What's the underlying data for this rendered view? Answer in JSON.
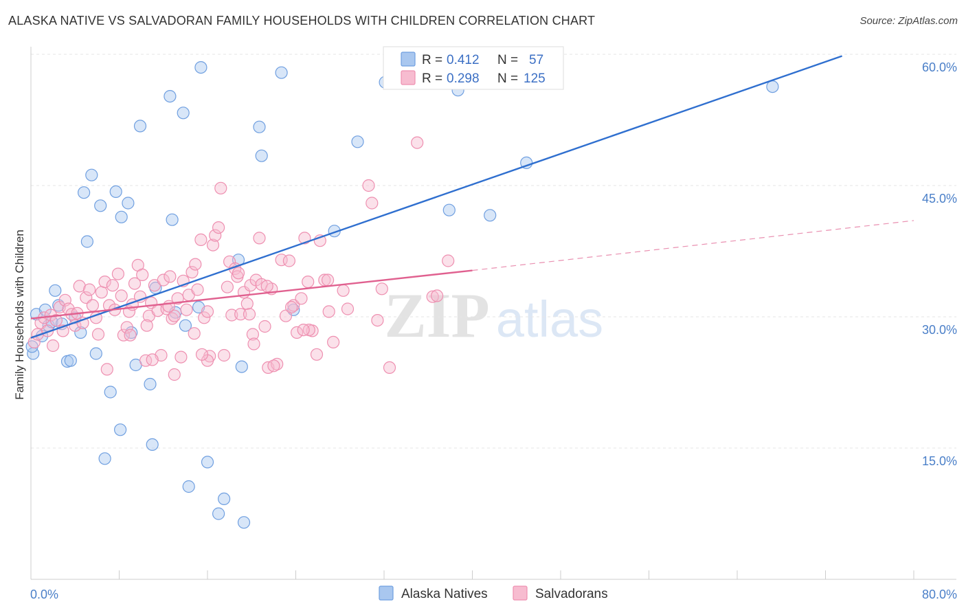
{
  "title": "ALASKA NATIVE VS SALVADORAN FAMILY HOUSEHOLDS WITH CHILDREN CORRELATION CHART",
  "source": "Source: ZipAtlas.com",
  "watermark": {
    "zip": "ZIP",
    "atlas": "atlas"
  },
  "legend": {
    "rows": [
      {
        "r_label": "R =",
        "r_value": "0.412",
        "n_label": "N =",
        "n_value": "57",
        "color": "#a9c7ef",
        "stroke": "#6f9fe0"
      },
      {
        "r_label": "R =",
        "r_value": "0.298",
        "n_label": "N =",
        "n_value": "125",
        "color": "#f7bcd0",
        "stroke": "#ee8fb0"
      }
    ]
  },
  "bottom_legend": [
    {
      "label": "Alaska Natives",
      "color": "#a9c7ef",
      "stroke": "#6f9fe0"
    },
    {
      "label": "Salvadorans",
      "color": "#f7bcd0",
      "stroke": "#ee8fb0"
    }
  ],
  "chart_data": {
    "type": "scatter",
    "title": "ALASKA NATIVE VS SALVADORAN FAMILY HOUSEHOLDS WITH CHILDREN CORRELATION CHART",
    "xlabel": "",
    "ylabel": "Family Households with Children",
    "xlim": [
      0,
      80
    ],
    "ylim": [
      0,
      60
    ],
    "x_tick_labels": [
      "0.0%",
      "80.0%"
    ],
    "y_ticks": [
      15,
      30,
      45,
      60
    ],
    "y_tick_labels": [
      "15.0%",
      "30.0%",
      "45.0%",
      "60.0%"
    ],
    "series": [
      {
        "name": "Alaska Natives",
        "color": "#a9c7ef",
        "stroke": "#6f9fe0",
        "line_color": "#2f6fcf",
        "trend": {
          "x": [
            0,
            73.5
          ],
          "y": [
            27.6,
            59.8
          ]
        },
        "points": [
          [
            0.2,
            25.8
          ],
          [
            0.5,
            30.3
          ],
          [
            1.0,
            27.8
          ],
          [
            1.3,
            30.8
          ],
          [
            1.6,
            29.0
          ],
          [
            1.9,
            29.4
          ],
          [
            2.2,
            33.0
          ],
          [
            2.5,
            31.3
          ],
          [
            2.8,
            29.2
          ],
          [
            3.3,
            24.9
          ],
          [
            3.6,
            25.0
          ],
          [
            4.0,
            29.9
          ],
          [
            4.5,
            28.2
          ],
          [
            4.8,
            44.2
          ],
          [
            5.1,
            38.6
          ],
          [
            5.5,
            46.2
          ],
          [
            5.9,
            25.8
          ],
          [
            6.3,
            42.7
          ],
          [
            6.7,
            13.8
          ],
          [
            7.2,
            21.4
          ],
          [
            7.7,
            44.3
          ],
          [
            8.1,
            17.1
          ],
          [
            8.2,
            41.4
          ],
          [
            8.8,
            43.0
          ],
          [
            9.1,
            28.2
          ],
          [
            9.5,
            24.5
          ],
          [
            9.9,
            51.8
          ],
          [
            10.8,
            22.3
          ],
          [
            11.0,
            15.4
          ],
          [
            11.3,
            33.3
          ],
          [
            12.6,
            55.2
          ],
          [
            12.8,
            41.1
          ],
          [
            13.1,
            30.5
          ],
          [
            13.8,
            53.3
          ],
          [
            14.3,
            10.6
          ],
          [
            14.0,
            29.0
          ],
          [
            15.2,
            31.1
          ],
          [
            15.4,
            58.5
          ],
          [
            16.0,
            13.4
          ],
          [
            17.0,
            7.5
          ],
          [
            17.5,
            9.2
          ],
          [
            18.8,
            36.5
          ],
          [
            19.1,
            24.3
          ],
          [
            19.3,
            6.5
          ],
          [
            20.7,
            51.7
          ],
          [
            20.9,
            48.4
          ],
          [
            22.7,
            57.9
          ],
          [
            23.8,
            30.8
          ],
          [
            27.5,
            39.8
          ],
          [
            29.6,
            50.0
          ],
          [
            32.1,
            56.8
          ],
          [
            37.9,
            42.2
          ],
          [
            38.7,
            55.9
          ],
          [
            41.6,
            41.6
          ],
          [
            44.9,
            47.6
          ],
          [
            67.2,
            56.3
          ],
          [
            0.1,
            26.6
          ]
        ]
      },
      {
        "name": "Salvadorans",
        "color": "#f7bcd0",
        "stroke": "#ee8fb0",
        "line_color": "#e0608f",
        "trend": {
          "x": [
            0,
            40.0
          ],
          "y": [
            29.8,
            35.3
          ]
        },
        "trend_extension": {
          "x": [
            40.0,
            80.0
          ],
          "y": [
            35.3,
            41.0
          ]
        },
        "points": [
          [
            0.3,
            27.1
          ],
          [
            0.6,
            28.0
          ],
          [
            0.9,
            29.3
          ],
          [
            1.2,
            29.9
          ],
          [
            1.5,
            28.4
          ],
          [
            1.8,
            30.2
          ],
          [
            2.0,
            26.7
          ],
          [
            2.3,
            29.6
          ],
          [
            2.6,
            31.1
          ],
          [
            2.9,
            28.4
          ],
          [
            3.1,
            31.9
          ],
          [
            3.4,
            30.9
          ],
          [
            3.7,
            30.3
          ],
          [
            4.0,
            29.0
          ],
          [
            4.2,
            30.4
          ],
          [
            4.4,
            33.5
          ],
          [
            4.7,
            29.3
          ],
          [
            5.0,
            32.2
          ],
          [
            5.3,
            33.1
          ],
          [
            5.6,
            31.3
          ],
          [
            5.9,
            29.9
          ],
          [
            6.1,
            28.0
          ],
          [
            6.4,
            32.8
          ],
          [
            6.7,
            34.0
          ],
          [
            6.9,
            24.0
          ],
          [
            7.1,
            31.3
          ],
          [
            7.4,
            33.6
          ],
          [
            7.6,
            30.8
          ],
          [
            7.9,
            34.9
          ],
          [
            8.2,
            32.4
          ],
          [
            8.4,
            27.9
          ],
          [
            8.7,
            28.8
          ],
          [
            8.9,
            30.6
          ],
          [
            9.2,
            31.4
          ],
          [
            9.4,
            33.8
          ],
          [
            9.7,
            35.9
          ],
          [
            9.9,
            32.3
          ],
          [
            10.1,
            34.8
          ],
          [
            10.4,
            25.0
          ],
          [
            10.7,
            30.1
          ],
          [
            10.9,
            31.6
          ],
          [
            11.2,
            33.6
          ],
          [
            11.5,
            30.7
          ],
          [
            11.8,
            25.6
          ],
          [
            12.0,
            34.2
          ],
          [
            12.3,
            30.9
          ],
          [
            12.6,
            34.6
          ],
          [
            12.8,
            29.8
          ],
          [
            13.0,
            23.4
          ],
          [
            13.3,
            32.1
          ],
          [
            13.6,
            25.4
          ],
          [
            13.8,
            34.1
          ],
          [
            14.1,
            30.8
          ],
          [
            14.3,
            32.5
          ],
          [
            14.6,
            35.1
          ],
          [
            14.9,
            36.0
          ],
          [
            15.1,
            33.1
          ],
          [
            15.4,
            38.8
          ],
          [
            15.7,
            29.9
          ],
          [
            16.0,
            30.6
          ],
          [
            16.2,
            25.5
          ],
          [
            16.5,
            38.2
          ],
          [
            16.7,
            39.3
          ],
          [
            17.0,
            40.2
          ],
          [
            17.2,
            44.7
          ],
          [
            17.5,
            25.6
          ],
          [
            17.8,
            33.4
          ],
          [
            18.0,
            36.3
          ],
          [
            18.2,
            30.2
          ],
          [
            18.5,
            35.5
          ],
          [
            18.7,
            34.6
          ],
          [
            19.0,
            30.3
          ],
          [
            19.3,
            32.8
          ],
          [
            19.6,
            31.5
          ],
          [
            19.9,
            33.6
          ],
          [
            20.1,
            28.0
          ],
          [
            20.4,
            34.2
          ],
          [
            20.7,
            39.0
          ],
          [
            20.9,
            33.7
          ],
          [
            21.2,
            28.9
          ],
          [
            21.5,
            24.2
          ],
          [
            21.8,
            33.2
          ],
          [
            22.3,
            24.6
          ],
          [
            22.7,
            36.5
          ],
          [
            23.1,
            30.1
          ],
          [
            23.4,
            36.4
          ],
          [
            23.8,
            31.3
          ],
          [
            24.1,
            28.2
          ],
          [
            24.5,
            32.1
          ],
          [
            24.8,
            39.0
          ],
          [
            25.1,
            34.0
          ],
          [
            25.5,
            28.4
          ],
          [
            25.9,
            25.7
          ],
          [
            26.2,
            38.7
          ],
          [
            26.6,
            34.2
          ],
          [
            27.0,
            30.6
          ],
          [
            27.4,
            27.1
          ],
          [
            28.3,
            33.0
          ],
          [
            30.6,
            45.0
          ],
          [
            30.9,
            43.0
          ],
          [
            31.4,
            29.6
          ],
          [
            31.8,
            33.2
          ],
          [
            32.5,
            24.2
          ],
          [
            35.0,
            49.9
          ],
          [
            36.4,
            32.3
          ],
          [
            36.8,
            32.4
          ],
          [
            37.8,
            36.4
          ],
          [
            13.0,
            30.1
          ],
          [
            14.8,
            28.1
          ],
          [
            9.0,
            27.9
          ],
          [
            16.0,
            25.0
          ],
          [
            11.0,
            25.1
          ],
          [
            12.5,
            31.2
          ],
          [
            18.8,
            35.0
          ],
          [
            22.0,
            24.4
          ],
          [
            25.2,
            28.5
          ],
          [
            10.5,
            29.0
          ],
          [
            15.5,
            25.7
          ],
          [
            19.8,
            30.3
          ],
          [
            21.4,
            33.5
          ],
          [
            23.6,
            31.1
          ],
          [
            26.9,
            34.2
          ],
          [
            28.7,
            30.9
          ],
          [
            24.7,
            28.5
          ],
          [
            20.2,
            26.9
          ]
        ]
      }
    ]
  }
}
